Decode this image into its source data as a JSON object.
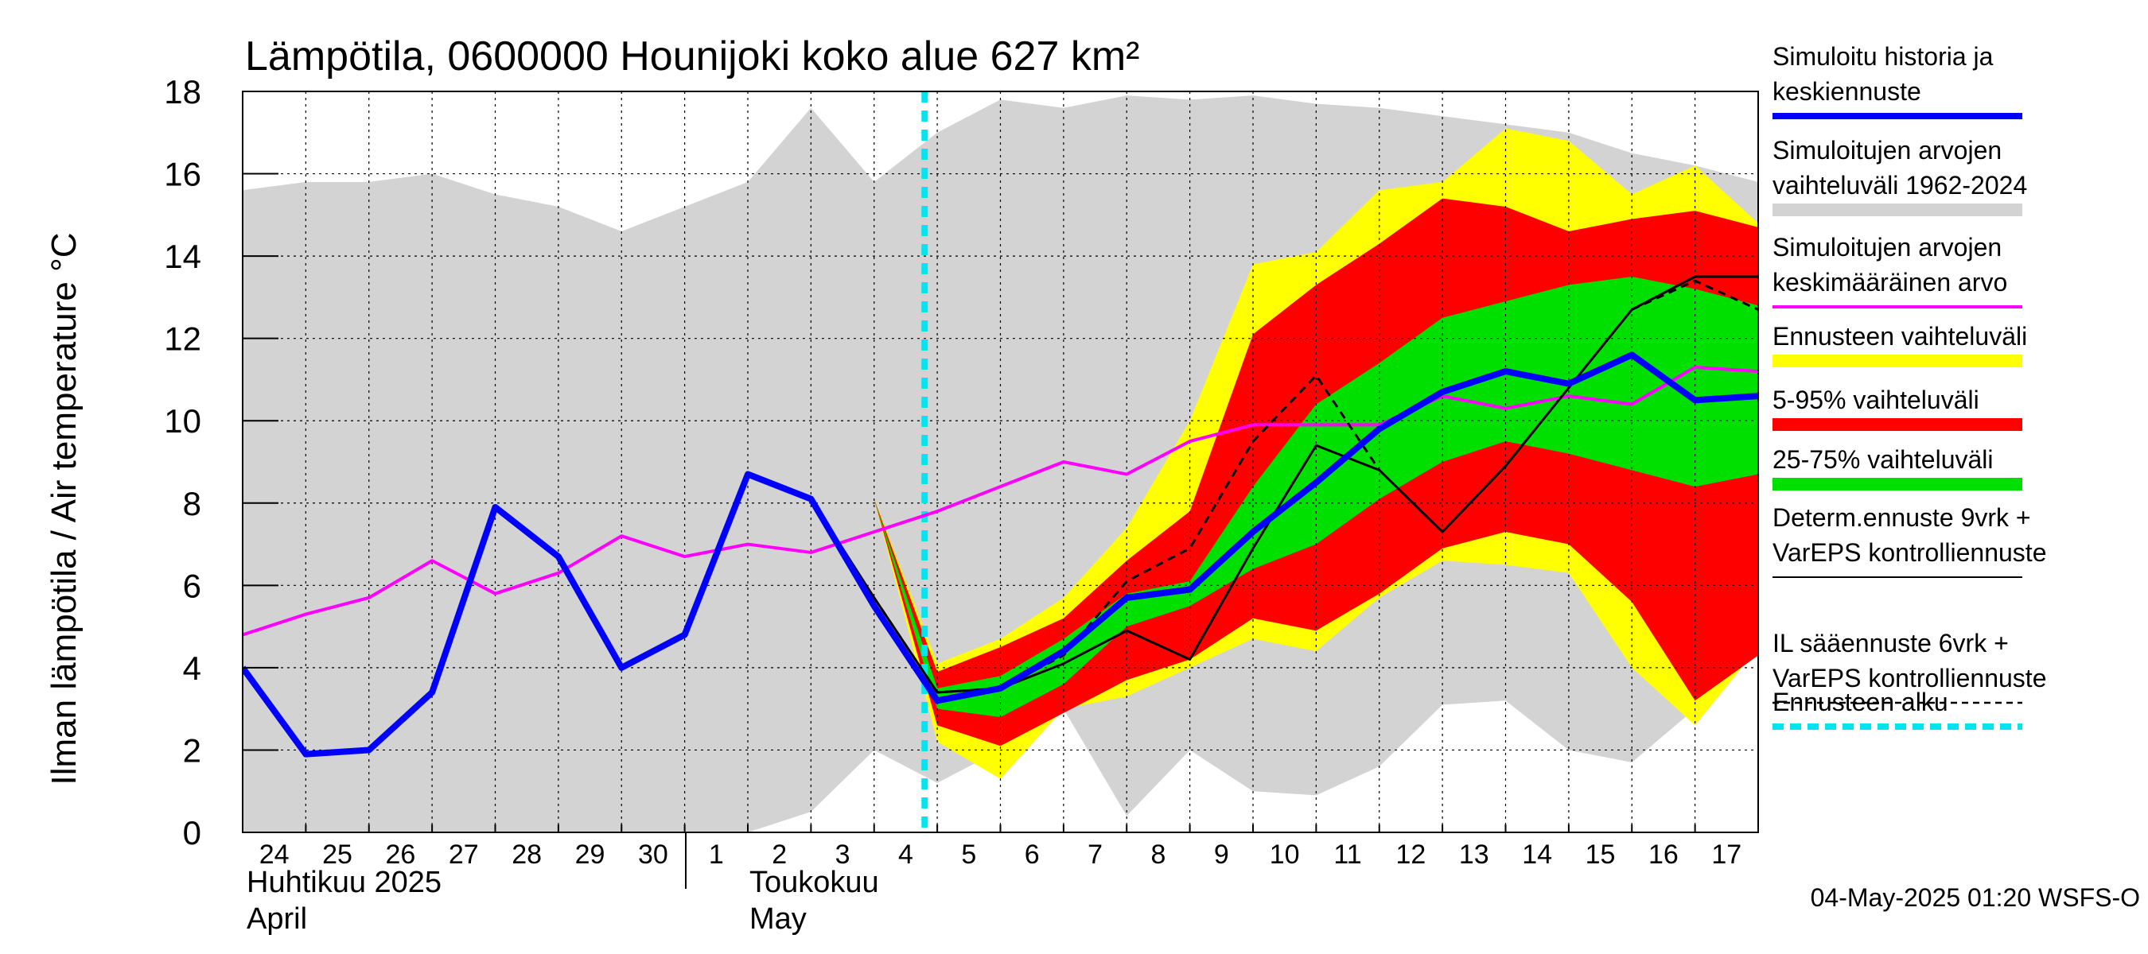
{
  "chart_data": {
    "type": "line",
    "title": "Lämpötila, 0600000 Hounijoki koko alue 627 km²",
    "ylabel": "Ilman lämpötila / Air temperature   °C",
    "ylim": [
      0,
      18
    ],
    "yticks": [
      "0",
      "2",
      "4",
      "6",
      "8",
      "10",
      "12",
      "14",
      "16",
      "18"
    ],
    "grid": true,
    "legend_position": "right",
    "x_days": [
      "24",
      "25",
      "26",
      "27",
      "28",
      "29",
      "30",
      "1",
      "2",
      "3",
      "4",
      "5",
      "6",
      "7",
      "8",
      "9",
      "10",
      "11",
      "12",
      "13",
      "14",
      "15",
      "16",
      "17"
    ],
    "x_month_labels": {
      "april_fi": "Huhtikuu  2025",
      "april_en": "April",
      "may_fi": "Toukokuu",
      "may_en": "May"
    },
    "forecast_start_x": 10.8,
    "history_range": {
      "x": [
        0,
        1,
        2,
        3,
        4,
        5,
        6,
        7,
        8,
        9,
        10,
        11,
        12,
        13,
        14,
        15,
        16,
        17,
        18,
        19,
        20,
        21,
        22,
        23,
        24
      ],
      "upper": [
        15.6,
        15.8,
        15.8,
        16.0,
        15.5,
        15.2,
        14.6,
        15.2,
        15.8,
        17.6,
        15.8,
        17.0,
        17.8,
        17.6,
        17.9,
        17.8,
        17.9,
        17.7,
        17.6,
        17.4,
        17.2,
        17.0,
        16.5,
        16.2,
        15.8
      ],
      "lower": [
        0,
        0,
        0,
        0,
        0,
        0,
        0,
        0,
        0,
        0.5,
        2.0,
        1.2,
        2.0,
        3.0,
        0.4,
        2.0,
        1.0,
        0.9,
        1.6,
        3.1,
        3.2,
        2.0,
        1.7,
        3.0,
        4.6
      ]
    },
    "forecast_range": {
      "x": [
        10,
        11,
        12,
        13,
        14,
        15,
        16,
        17,
        18,
        19,
        20,
        21,
        22,
        23,
        24
      ],
      "upper": [
        8.1,
        4.1,
        4.7,
        5.7,
        7.4,
        10.0,
        13.8,
        14.1,
        15.6,
        15.8,
        17.1,
        16.8,
        15.5,
        16.2,
        14.8
      ],
      "lower": [
        8.1,
        2.2,
        1.3,
        3.0,
        3.3,
        4.0,
        4.7,
        4.4,
        5.7,
        6.6,
        6.5,
        6.3,
        4.0,
        2.6,
        4.5
      ]
    },
    "p5_95": {
      "x": [
        10,
        11,
        12,
        13,
        14,
        15,
        16,
        17,
        18,
        19,
        20,
        21,
        22,
        23,
        24
      ],
      "upper": [
        8.1,
        3.9,
        4.5,
        5.2,
        6.6,
        7.8,
        12.1,
        13.3,
        14.3,
        15.4,
        15.2,
        14.6,
        14.9,
        15.1,
        14.7
      ],
      "lower": [
        8.1,
        2.6,
        2.1,
        2.9,
        3.7,
        4.2,
        5.2,
        4.9,
        5.8,
        6.9,
        7.3,
        7.0,
        5.6,
        3.2,
        4.3
      ]
    },
    "p25_75": {
      "x": [
        10,
        11,
        12,
        13,
        14,
        15,
        16,
        17,
        18,
        19,
        20,
        21,
        22,
        23,
        24
      ],
      "upper": [
        8.1,
        3.5,
        3.8,
        4.7,
        5.8,
        6.1,
        8.4,
        10.4,
        11.4,
        12.5,
        12.9,
        13.3,
        13.5,
        13.2,
        12.8
      ],
      "lower": [
        8.1,
        3.0,
        2.8,
        3.6,
        5.0,
        5.5,
        6.4,
        7.0,
        8.1,
        9.0,
        9.5,
        9.2,
        8.8,
        8.4,
        8.7
      ]
    },
    "series": [
      {
        "name": "Simuloitu historia ja keskiennuste",
        "color": "#0000ff",
        "x": [
          0,
          1,
          2,
          3,
          4,
          5,
          6,
          7,
          8,
          9,
          10,
          11,
          12,
          13,
          14,
          15,
          16,
          17,
          18,
          19,
          20,
          21,
          22,
          23,
          24
        ],
        "y": [
          4.0,
          1.9,
          2.0,
          3.4,
          7.9,
          6.7,
          4.0,
          4.8,
          8.7,
          8.1,
          5.5,
          3.2,
          3.5,
          4.4,
          5.7,
          5.9,
          7.3,
          8.5,
          9.8,
          10.7,
          11.2,
          10.9,
          11.6,
          10.5,
          10.6
        ]
      },
      {
        "name": "Simuloitujen arvojen keskimääräinen arvo",
        "color": "#ff00ff",
        "x": [
          0,
          1,
          2,
          3,
          4,
          5,
          6,
          7,
          8,
          9,
          10,
          11,
          12,
          13,
          14,
          15,
          16,
          17,
          18,
          19,
          20,
          21,
          22,
          23,
          24
        ],
        "y": [
          4.8,
          5.3,
          5.7,
          6.6,
          5.8,
          6.3,
          7.2,
          6.7,
          7.0,
          6.8,
          7.3,
          7.8,
          8.4,
          9.0,
          8.7,
          9.5,
          9.9,
          9.9,
          9.9,
          10.6,
          10.3,
          10.6,
          10.4,
          11.3,
          11.2
        ]
      },
      {
        "name": "Determ.ennuste 9vrk + VarEPS kontrolliennuste",
        "color": "#000000",
        "x": [
          8,
          9,
          10,
          11,
          12,
          13,
          14,
          15,
          16,
          17,
          18,
          19,
          20,
          21,
          22,
          23,
          24
        ],
        "y": [
          8.7,
          8.1,
          5.7,
          3.4,
          3.5,
          4.1,
          4.9,
          4.2,
          6.9,
          9.4,
          8.8,
          7.3,
          8.9,
          10.8,
          12.7,
          13.5,
          13.5
        ]
      },
      {
        "name": "IL sääennuste 6vrk + VarEPS kontrolliennuste",
        "color": "#000000",
        "x": [
          10,
          11,
          12,
          13,
          14,
          15,
          16,
          17,
          18
        ],
        "y": [
          5.7,
          3.4,
          3.5,
          4.3,
          6.1,
          6.9,
          9.5,
          11.1,
          8.8
        ]
      },
      {
        "name": "IL sääennuste 6vrk + VarEPS kontrolliennuste (jatko)",
        "color": "#000000",
        "x": [
          22,
          23,
          24
        ],
        "y": [
          12.7,
          13.4,
          12.7
        ]
      }
    ]
  },
  "legend": [
    {
      "label1": "Simuloitu historia ja",
      "label2": "keskiennuste",
      "color": "#0000ff",
      "style": "thick"
    },
    {
      "label1": "Simuloitujen arvojen",
      "label2": "vaihteluväli 1962-2024",
      "color": "#d3d3d3",
      "style": "band"
    },
    {
      "label1": "Simuloitujen arvojen",
      "label2": "keskimääräinen arvo",
      "color": "#ff00ff",
      "style": "line"
    },
    {
      "label1": "Ennusteen vaihteluväli",
      "label2": "",
      "color": "#ffff00",
      "style": "band"
    },
    {
      "label1": "5-95% vaihteluväli",
      "label2": "",
      "color": "#ff0000",
      "style": "band"
    },
    {
      "label1": "25-75% vaihteluväli",
      "label2": "",
      "color": "#00e000",
      "style": "band"
    },
    {
      "label1": "Determ.ennuste 9vrk +",
      "label2": "VarEPS kontrolliennuste",
      "color": "#000000",
      "style": "thin"
    },
    {
      "label1": "IL sääennuste 6vrk  +",
      "label2": "  VarEPS kontrolliennuste",
      "color": "#000000",
      "style": "dashed"
    },
    {
      "label1": "Ennusteen alku",
      "label2": "",
      "color": "#00e5ee",
      "style": "cyan-dashed"
    }
  ],
  "footer": "04-May-2025 01:20 WSFS-O"
}
